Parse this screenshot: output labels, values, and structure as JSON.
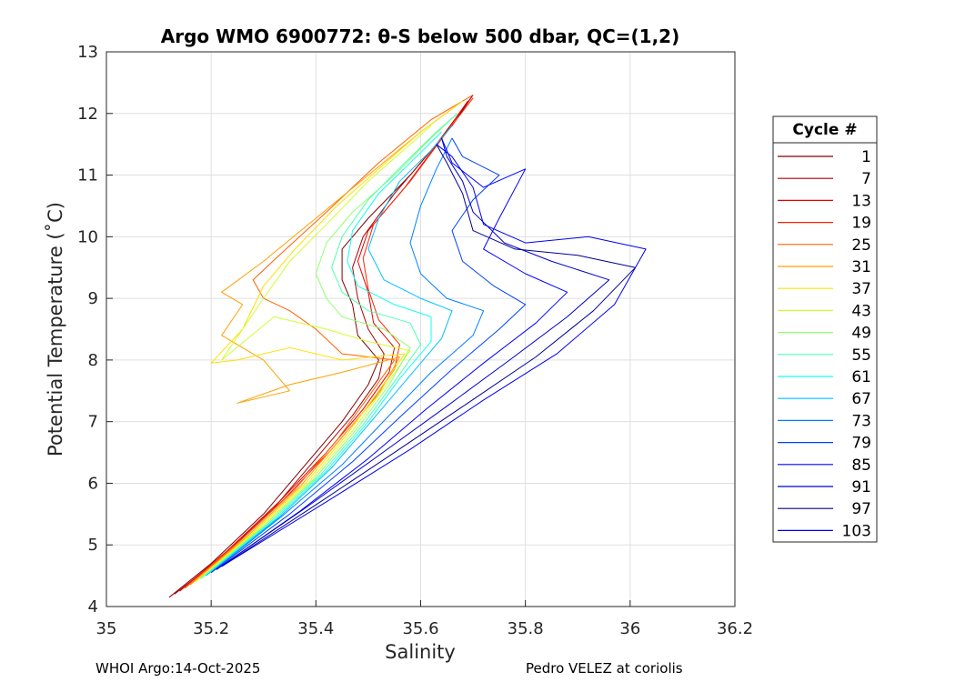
{
  "chart_data": {
    "type": "line",
    "title": "Argo WMO 6900772: θ-S below 500 dbar,  QC=(1,2)",
    "xlabel": "Salinity",
    "ylabel": "Potential Temperature (˚C)",
    "xlim": [
      35,
      36.2
    ],
    "ylim": [
      4,
      13
    ],
    "x_ticks": [
      35,
      35.2,
      35.4,
      35.6,
      35.8,
      36,
      36.2
    ],
    "x_tick_labels": [
      "35",
      "35.2",
      "35.4",
      "35.6",
      "35.8",
      "36",
      "36.2"
    ],
    "y_ticks": [
      4,
      5,
      6,
      7,
      8,
      9,
      10,
      11,
      12,
      13
    ],
    "y_tick_labels": [
      "4",
      "5",
      "6",
      "7",
      "8",
      "9",
      "10",
      "11",
      "12",
      "13"
    ],
    "grid": true,
    "legend": {
      "title": "Cycle #",
      "placement": "right",
      "entries": [
        {
          "label": "1",
          "color": "#800000"
        },
        {
          "label": "7",
          "color": "#b00000"
        },
        {
          "label": "13",
          "color": "#e00000"
        },
        {
          "label": "19",
          "color": "#ff2000"
        },
        {
          "label": "25",
          "color": "#ff6000"
        },
        {
          "label": "31",
          "color": "#ffa000"
        },
        {
          "label": "37",
          "color": "#ffe000"
        },
        {
          "label": "43",
          "color": "#d0ff30"
        },
        {
          "label": "49",
          "color": "#90ff70"
        },
        {
          "label": "55",
          "color": "#50ffb0"
        },
        {
          "label": "61",
          "color": "#10fff0"
        },
        {
          "label": "67",
          "color": "#00c0ff"
        },
        {
          "label": "73",
          "color": "#0080ff"
        },
        {
          "label": "79",
          "color": "#0040ff"
        },
        {
          "label": "85",
          "color": "#0000ff"
        },
        {
          "label": "91",
          "color": "#0000c8"
        },
        {
          "label": "97",
          "color": "#000090"
        },
        {
          "label": "103",
          "color": "#0000ee"
        }
      ]
    },
    "series": [
      {
        "name": "1",
        "color": "#800000",
        "points": [
          [
            35.12,
            4.15
          ],
          [
            35.2,
            4.7
          ],
          [
            35.3,
            5.5
          ],
          [
            35.38,
            6.3
          ],
          [
            35.45,
            7.0
          ],
          [
            35.5,
            7.6
          ],
          [
            35.52,
            8.0
          ],
          [
            35.48,
            8.4
          ],
          [
            35.47,
            8.9
          ],
          [
            35.45,
            9.3
          ],
          [
            35.45,
            9.8
          ],
          [
            35.5,
            10.3
          ],
          [
            35.58,
            11.0
          ],
          [
            35.66,
            11.8
          ],
          [
            35.7,
            12.3
          ]
        ]
      },
      {
        "name": "7",
        "color": "#b00000",
        "points": [
          [
            35.13,
            4.2
          ],
          [
            35.22,
            4.8
          ],
          [
            35.32,
            5.6
          ],
          [
            35.4,
            6.4
          ],
          [
            35.47,
            7.1
          ],
          [
            35.52,
            7.7
          ],
          [
            35.53,
            8.1
          ],
          [
            35.5,
            8.5
          ],
          [
            35.48,
            9.0
          ],
          [
            35.47,
            9.5
          ],
          [
            35.49,
            10.0
          ],
          [
            35.55,
            10.7
          ],
          [
            35.63,
            11.5
          ],
          [
            35.7,
            12.3
          ]
        ]
      },
      {
        "name": "13",
        "color": "#e00000",
        "points": [
          [
            35.14,
            4.25
          ],
          [
            35.23,
            4.9
          ],
          [
            35.33,
            5.7
          ],
          [
            35.42,
            6.5
          ],
          [
            35.49,
            7.2
          ],
          [
            35.54,
            7.8
          ],
          [
            35.55,
            8.2
          ],
          [
            35.51,
            8.6
          ],
          [
            35.5,
            9.1
          ],
          [
            35.48,
            9.6
          ],
          [
            35.5,
            10.1
          ],
          [
            35.57,
            10.8
          ],
          [
            35.64,
            11.6
          ],
          [
            35.69,
            12.2
          ]
        ]
      },
      {
        "name": "19",
        "color": "#ff2000",
        "points": [
          [
            35.15,
            4.3
          ],
          [
            35.24,
            4.95
          ],
          [
            35.34,
            5.75
          ],
          [
            35.43,
            6.55
          ],
          [
            35.5,
            7.25
          ],
          [
            35.55,
            7.85
          ],
          [
            35.56,
            8.25
          ],
          [
            35.52,
            8.65
          ],
          [
            35.5,
            9.15
          ],
          [
            35.49,
            9.65
          ],
          [
            35.51,
            10.2
          ],
          [
            35.58,
            10.9
          ],
          [
            35.65,
            11.7
          ],
          [
            35.7,
            12.25
          ]
        ]
      },
      {
        "name": "25",
        "color": "#ff6000",
        "points": [
          [
            35.15,
            4.3
          ],
          [
            35.26,
            5.1
          ],
          [
            35.36,
            5.9
          ],
          [
            35.44,
            6.7
          ],
          [
            35.5,
            7.4
          ],
          [
            35.55,
            8.0
          ],
          [
            35.45,
            8.1
          ],
          [
            35.4,
            8.5
          ],
          [
            35.35,
            8.8
          ],
          [
            35.3,
            9.0
          ],
          [
            35.28,
            9.3
          ],
          [
            35.33,
            9.7
          ],
          [
            35.42,
            10.4
          ],
          [
            35.52,
            11.2
          ],
          [
            35.62,
            11.9
          ],
          [
            35.7,
            12.3
          ]
        ]
      },
      {
        "name": "31",
        "color": "#ffa000",
        "points": [
          [
            35.16,
            4.35
          ],
          [
            35.27,
            5.15
          ],
          [
            35.37,
            5.95
          ],
          [
            35.45,
            6.75
          ],
          [
            35.52,
            7.45
          ],
          [
            35.56,
            8.05
          ],
          [
            35.45,
            7.8
          ],
          [
            35.35,
            7.6
          ],
          [
            35.25,
            7.3
          ],
          [
            35.35,
            7.5
          ],
          [
            35.3,
            8.0
          ],
          [
            35.22,
            8.4
          ],
          [
            35.26,
            8.9
          ],
          [
            35.22,
            9.1
          ],
          [
            35.3,
            9.6
          ],
          [
            35.4,
            10.3
          ],
          [
            35.5,
            11.0
          ],
          [
            35.6,
            11.7
          ],
          [
            35.68,
            12.2
          ]
        ]
      },
      {
        "name": "37",
        "color": "#ffe000",
        "points": [
          [
            35.17,
            4.4
          ],
          [
            35.28,
            5.2
          ],
          [
            35.38,
            6.0
          ],
          [
            35.46,
            6.8
          ],
          [
            35.52,
            7.5
          ],
          [
            35.57,
            8.1
          ],
          [
            35.45,
            8.0
          ],
          [
            35.35,
            8.2
          ],
          [
            35.25,
            8.0
          ],
          [
            35.2,
            7.95
          ],
          [
            35.26,
            8.5
          ],
          [
            35.3,
            9.2
          ],
          [
            35.36,
            9.8
          ],
          [
            35.44,
            10.5
          ],
          [
            35.52,
            11.1
          ],
          [
            35.6,
            11.7
          ],
          [
            35.68,
            12.2
          ]
        ]
      },
      {
        "name": "43",
        "color": "#d0ff30",
        "points": [
          [
            35.17,
            4.4
          ],
          [
            35.29,
            5.25
          ],
          [
            35.39,
            6.05
          ],
          [
            35.47,
            6.85
          ],
          [
            35.53,
            7.55
          ],
          [
            35.58,
            8.15
          ],
          [
            35.5,
            8.3
          ],
          [
            35.42,
            8.5
          ],
          [
            35.32,
            8.7
          ],
          [
            35.22,
            8.0
          ],
          [
            35.3,
            9.0
          ],
          [
            35.35,
            9.6
          ],
          [
            35.42,
            10.2
          ],
          [
            35.5,
            10.9
          ],
          [
            35.58,
            11.5
          ],
          [
            35.62,
            11.8
          ]
        ]
      },
      {
        "name": "49",
        "color": "#90ff70",
        "points": [
          [
            35.18,
            4.45
          ],
          [
            35.3,
            5.3
          ],
          [
            35.4,
            6.1
          ],
          [
            35.48,
            6.9
          ],
          [
            35.54,
            7.6
          ],
          [
            35.58,
            8.2
          ],
          [
            35.53,
            8.5
          ],
          [
            35.45,
            8.7
          ],
          [
            35.42,
            9.0
          ],
          [
            35.4,
            9.4
          ],
          [
            35.42,
            9.9
          ],
          [
            35.47,
            10.4
          ],
          [
            35.55,
            11.0
          ],
          [
            35.62,
            11.6
          ],
          [
            35.67,
            12.0
          ]
        ]
      },
      {
        "name": "55",
        "color": "#50ffb0",
        "points": [
          [
            35.18,
            4.45
          ],
          [
            35.31,
            5.35
          ],
          [
            35.41,
            6.15
          ],
          [
            35.49,
            6.95
          ],
          [
            35.55,
            7.65
          ],
          [
            35.6,
            8.25
          ],
          [
            35.58,
            8.6
          ],
          [
            35.5,
            8.8
          ],
          [
            35.45,
            9.1
          ],
          [
            35.43,
            9.5
          ],
          [
            35.45,
            10.0
          ],
          [
            35.5,
            10.6
          ],
          [
            35.57,
            11.2
          ],
          [
            35.63,
            11.7
          ],
          [
            35.67,
            12.0
          ]
        ]
      },
      {
        "name": "61",
        "color": "#10fff0",
        "points": [
          [
            35.19,
            4.5
          ],
          [
            35.32,
            5.4
          ],
          [
            35.42,
            6.2
          ],
          [
            35.5,
            7.0
          ],
          [
            35.56,
            7.7
          ],
          [
            35.62,
            8.3
          ],
          [
            35.62,
            8.7
          ],
          [
            35.55,
            8.9
          ],
          [
            35.48,
            9.2
          ],
          [
            35.46,
            9.6
          ],
          [
            35.47,
            10.1
          ],
          [
            35.52,
            10.7
          ],
          [
            35.58,
            11.2
          ],
          [
            35.64,
            11.7
          ]
        ]
      },
      {
        "name": "67",
        "color": "#00c0ff",
        "points": [
          [
            35.19,
            4.5
          ],
          [
            35.33,
            5.45
          ],
          [
            35.43,
            6.25
          ],
          [
            35.51,
            7.05
          ],
          [
            35.58,
            7.75
          ],
          [
            35.64,
            8.35
          ],
          [
            35.66,
            8.8
          ],
          [
            35.6,
            9.0
          ],
          [
            35.53,
            9.3
          ],
          [
            35.5,
            9.8
          ],
          [
            35.52,
            10.3
          ],
          [
            35.56,
            10.9
          ],
          [
            35.62,
            11.4
          ],
          [
            35.66,
            11.8
          ]
        ]
      },
      {
        "name": "73",
        "color": "#0080ff",
        "points": [
          [
            35.2,
            4.55
          ],
          [
            35.34,
            5.5
          ],
          [
            35.45,
            6.3
          ],
          [
            35.54,
            7.1
          ],
          [
            35.62,
            7.8
          ],
          [
            35.7,
            8.4
          ],
          [
            35.72,
            8.8
          ],
          [
            35.65,
            9.0
          ],
          [
            35.6,
            9.4
          ],
          [
            35.58,
            9.9
          ],
          [
            35.6,
            10.5
          ],
          [
            35.63,
            11.1
          ],
          [
            35.66,
            11.6
          ]
        ]
      },
      {
        "name": "79",
        "color": "#0040ff",
        "points": [
          [
            35.2,
            4.55
          ],
          [
            35.35,
            5.5
          ],
          [
            35.47,
            6.35
          ],
          [
            35.57,
            7.15
          ],
          [
            35.66,
            7.85
          ],
          [
            35.75,
            8.5
          ],
          [
            35.8,
            8.9
          ],
          [
            35.74,
            9.2
          ],
          [
            35.68,
            9.6
          ],
          [
            35.66,
            10.1
          ],
          [
            35.7,
            10.6
          ],
          [
            35.75,
            11.0
          ],
          [
            35.68,
            11.3
          ],
          [
            35.66,
            11.6
          ]
        ]
      },
      {
        "name": "85",
        "color": "#0000ff",
        "points": [
          [
            35.21,
            4.6
          ],
          [
            35.37,
            5.55
          ],
          [
            35.5,
            6.4
          ],
          [
            35.61,
            7.2
          ],
          [
            35.72,
            7.95
          ],
          [
            35.82,
            8.6
          ],
          [
            35.88,
            9.1
          ],
          [
            35.8,
            9.4
          ],
          [
            35.72,
            9.8
          ],
          [
            35.75,
            10.3
          ],
          [
            35.8,
            11.1
          ],
          [
            35.72,
            10.8
          ],
          [
            35.66,
            11.2
          ],
          [
            35.64,
            11.6
          ]
        ]
      },
      {
        "name": "91",
        "color": "#0000c8",
        "points": [
          [
            35.21,
            4.6
          ],
          [
            35.38,
            5.6
          ],
          [
            35.52,
            6.45
          ],
          [
            35.65,
            7.25
          ],
          [
            35.77,
            8.0
          ],
          [
            35.88,
            8.7
          ],
          [
            35.96,
            9.3
          ],
          [
            35.85,
            9.6
          ],
          [
            35.76,
            9.9
          ],
          [
            35.7,
            10.4
          ],
          [
            35.68,
            10.9
          ],
          [
            35.65,
            11.3
          ],
          [
            35.64,
            11.6
          ]
        ]
      },
      {
        "name": "97",
        "color": "#000090",
        "points": [
          [
            35.22,
            4.65
          ],
          [
            35.4,
            5.65
          ],
          [
            35.55,
            6.5
          ],
          [
            35.69,
            7.3
          ],
          [
            35.82,
            8.05
          ],
          [
            35.93,
            8.8
          ],
          [
            36.01,
            9.5
          ],
          [
            35.9,
            9.7
          ],
          [
            35.78,
            9.8
          ],
          [
            35.7,
            10.1
          ],
          [
            35.68,
            10.7
          ],
          [
            35.65,
            11.2
          ],
          [
            35.63,
            11.5
          ]
        ]
      },
      {
        "name": "103",
        "color": "#0000ee",
        "points": [
          [
            35.22,
            4.65
          ],
          [
            35.42,
            5.7
          ],
          [
            35.58,
            6.55
          ],
          [
            35.72,
            7.35
          ],
          [
            35.86,
            8.1
          ],
          [
            35.97,
            8.9
          ],
          [
            36.03,
            9.8
          ],
          [
            35.92,
            10.0
          ],
          [
            35.8,
            9.9
          ],
          [
            35.72,
            10.2
          ],
          [
            35.7,
            10.8
          ],
          [
            35.66,
            11.3
          ],
          [
            35.63,
            11.5
          ]
        ]
      }
    ]
  },
  "footer": {
    "left": "WHOI Argo:14-Oct-2025",
    "right": "Pedro VELEZ at coriolis"
  }
}
